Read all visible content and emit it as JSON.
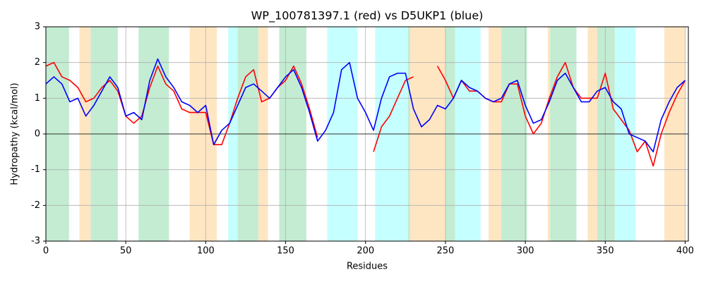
{
  "chart_data": {
    "type": "line",
    "title": "WP_100781397.1 (red) vs D5UKP1 (blue)",
    "x_label": "Residues",
    "y_label": "Hydropathy (kcal/mol)",
    "xlim": [
      0,
      402
    ],
    "ylim": [
      -3,
      3
    ],
    "xticks": [
      0,
      50,
      100,
      150,
      200,
      250,
      300,
      350,
      400
    ],
    "yticks": [
      -3,
      -2,
      -1,
      0,
      1,
      2,
      3
    ],
    "grid": true,
    "hlines": [
      0
    ],
    "spans": [
      {
        "start": 0,
        "end": 14.5,
        "color": "#c3ecd2"
      },
      {
        "start": 21,
        "end": 28,
        "color": "#ffe6c2"
      },
      {
        "start": 28,
        "end": 45,
        "color": "#c3ecd2"
      },
      {
        "start": 58,
        "end": 77,
        "color": "#c3ecd2"
      },
      {
        "start": 90,
        "end": 107,
        "color": "#ffe6c2"
      },
      {
        "start": 114,
        "end": 120,
        "color": "#c6ffff"
      },
      {
        "start": 120,
        "end": 133,
        "color": "#c3ecd2"
      },
      {
        "start": 133,
        "end": 139,
        "color": "#ffe6c2"
      },
      {
        "start": 146,
        "end": 163,
        "color": "#c3ecd2"
      },
      {
        "start": 176,
        "end": 195,
        "color": "#c6ffff"
      },
      {
        "start": 206,
        "end": 226.5,
        "color": "#c6ffff"
      },
      {
        "start": 226.5,
        "end": 228,
        "color": "#c3ecd2"
      },
      {
        "start": 228,
        "end": 250,
        "color": "#ffe6c2"
      },
      {
        "start": 250,
        "end": 256,
        "color": "#c3ecd2"
      },
      {
        "start": 256,
        "end": 272,
        "color": "#c6ffff"
      },
      {
        "start": 277,
        "end": 285,
        "color": "#ffe6c2"
      },
      {
        "start": 285,
        "end": 301,
        "color": "#c3ecd2"
      },
      {
        "start": 314,
        "end": 315.5,
        "color": "#ffe6c2"
      },
      {
        "start": 315.5,
        "end": 332,
        "color": "#c3ecd2"
      },
      {
        "start": 339,
        "end": 345,
        "color": "#ffe6c2"
      },
      {
        "start": 345,
        "end": 356,
        "color": "#c3ecd2"
      },
      {
        "start": 356,
        "end": 369,
        "color": "#c6ffff"
      },
      {
        "start": 387,
        "end": 400,
        "color": "#ffe6c2"
      }
    ],
    "x": [
      0,
      5,
      10,
      15,
      20,
      25,
      30,
      35,
      40,
      45,
      50,
      55,
      60,
      65,
      70,
      75,
      80,
      85,
      90,
      95,
      100,
      105,
      110,
      115,
      120,
      125,
      130,
      135,
      140,
      145,
      150,
      155,
      160,
      165,
      170,
      175,
      180,
      185,
      190,
      195,
      200,
      205,
      210,
      215,
      220,
      225,
      230,
      235,
      240,
      245,
      250,
      255,
      260,
      265,
      270,
      275,
      280,
      285,
      290,
      295,
      300,
      305,
      310,
      315,
      320,
      325,
      330,
      335,
      340,
      345,
      350,
      355,
      360,
      365,
      370,
      375,
      380,
      385,
      390,
      395,
      400
    ],
    "series": [
      {
        "color": "#ff0000",
        "values": [
          1.9,
          2.0,
          1.6,
          1.5,
          1.3,
          0.9,
          1.0,
          1.3,
          1.5,
          1.2,
          0.5,
          0.3,
          0.5,
          1.3,
          1.9,
          1.4,
          1.2,
          0.7,
          0.6,
          0.6,
          0.6,
          -0.3,
          -0.3,
          0.3,
          1.0,
          1.6,
          1.8,
          0.9,
          1.0,
          1.3,
          1.5,
          1.9,
          1.4,
          0.7,
          -0.1,
          null,
          null,
          null,
          null,
          null,
          null,
          -0.5,
          0.2,
          0.5,
          1.0,
          1.5,
          1.6,
          null,
          null,
          1.9,
          1.5,
          1.0,
          1.5,
          1.2,
          1.2,
          1.0,
          0.9,
          0.9,
          1.4,
          1.4,
          0.5,
          0.0,
          0.3,
          1.0,
          1.6,
          2.0,
          1.3,
          1.0,
          1.0,
          1.0,
          1.7,
          0.7,
          0.4,
          0.1,
          -0.5,
          -0.2,
          -0.9,
          0.0,
          0.6,
          1.1,
          1.5
        ]
      },
      {
        "color": "#0000ff",
        "values": [
          1.4,
          1.6,
          1.4,
          0.9,
          1.0,
          0.5,
          0.8,
          1.2,
          1.6,
          1.3,
          0.5,
          0.6,
          0.4,
          1.5,
          2.1,
          1.6,
          1.3,
          0.9,
          0.8,
          0.6,
          0.8,
          -0.3,
          0.1,
          0.3,
          0.8,
          1.3,
          1.4,
          1.2,
          1.0,
          1.3,
          1.6,
          1.8,
          1.3,
          0.6,
          -0.2,
          0.1,
          0.6,
          1.8,
          2.0,
          1.0,
          0.6,
          0.1,
          1.0,
          1.6,
          1.7,
          1.7,
          0.7,
          0.2,
          0.4,
          0.8,
          0.7,
          1.0,
          1.5,
          1.3,
          1.2,
          1.0,
          0.9,
          1.0,
          1.4,
          1.5,
          0.8,
          0.3,
          0.4,
          0.9,
          1.5,
          1.7,
          1.3,
          0.9,
          0.9,
          1.2,
          1.3,
          0.9,
          0.7,
          0.0,
          -0.1,
          -0.2,
          -0.5,
          0.4,
          0.9,
          1.3,
          1.5
        ]
      }
    ]
  }
}
